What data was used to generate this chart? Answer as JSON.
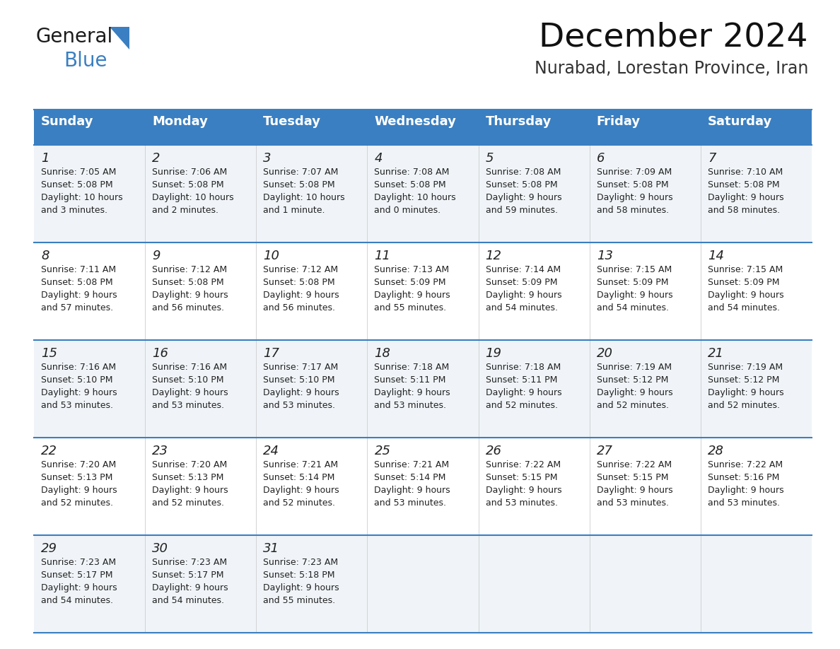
{
  "title": "December 2024",
  "subtitle": "Nurabad, Lorestan Province, Iran",
  "header_color": "#3a7fc1",
  "header_text_color": "#ffffff",
  "background_color": "#ffffff",
  "cell_bg_odd": "#f0f4f8",
  "cell_bg_even": "#ffffff",
  "border_color": "#3a7fc1",
  "text_color": "#222222",
  "day_names": [
    "Sunday",
    "Monday",
    "Tuesday",
    "Wednesday",
    "Thursday",
    "Friday",
    "Saturday"
  ],
  "weeks": [
    [
      {
        "day": 1,
        "sunrise": "7:05 AM",
        "sunset": "5:08 PM",
        "daylight_line1": "10 hours",
        "daylight_line2": "and 3 minutes."
      },
      {
        "day": 2,
        "sunrise": "7:06 AM",
        "sunset": "5:08 PM",
        "daylight_line1": "10 hours",
        "daylight_line2": "and 2 minutes."
      },
      {
        "day": 3,
        "sunrise": "7:07 AM",
        "sunset": "5:08 PM",
        "daylight_line1": "10 hours",
        "daylight_line2": "and 1 minute."
      },
      {
        "day": 4,
        "sunrise": "7:08 AM",
        "sunset": "5:08 PM",
        "daylight_line1": "10 hours",
        "daylight_line2": "and 0 minutes."
      },
      {
        "day": 5,
        "sunrise": "7:08 AM",
        "sunset": "5:08 PM",
        "daylight_line1": "9 hours",
        "daylight_line2": "and 59 minutes."
      },
      {
        "day": 6,
        "sunrise": "7:09 AM",
        "sunset": "5:08 PM",
        "daylight_line1": "9 hours",
        "daylight_line2": "and 58 minutes."
      },
      {
        "day": 7,
        "sunrise": "7:10 AM",
        "sunset": "5:08 PM",
        "daylight_line1": "9 hours",
        "daylight_line2": "and 58 minutes."
      }
    ],
    [
      {
        "day": 8,
        "sunrise": "7:11 AM",
        "sunset": "5:08 PM",
        "daylight_line1": "9 hours",
        "daylight_line2": "and 57 minutes."
      },
      {
        "day": 9,
        "sunrise": "7:12 AM",
        "sunset": "5:08 PM",
        "daylight_line1": "9 hours",
        "daylight_line2": "and 56 minutes."
      },
      {
        "day": 10,
        "sunrise": "7:12 AM",
        "sunset": "5:08 PM",
        "daylight_line1": "9 hours",
        "daylight_line2": "and 56 minutes."
      },
      {
        "day": 11,
        "sunrise": "7:13 AM",
        "sunset": "5:09 PM",
        "daylight_line1": "9 hours",
        "daylight_line2": "and 55 minutes."
      },
      {
        "day": 12,
        "sunrise": "7:14 AM",
        "sunset": "5:09 PM",
        "daylight_line1": "9 hours",
        "daylight_line2": "and 54 minutes."
      },
      {
        "day": 13,
        "sunrise": "7:15 AM",
        "sunset": "5:09 PM",
        "daylight_line1": "9 hours",
        "daylight_line2": "and 54 minutes."
      },
      {
        "day": 14,
        "sunrise": "7:15 AM",
        "sunset": "5:09 PM",
        "daylight_line1": "9 hours",
        "daylight_line2": "and 54 minutes."
      }
    ],
    [
      {
        "day": 15,
        "sunrise": "7:16 AM",
        "sunset": "5:10 PM",
        "daylight_line1": "9 hours",
        "daylight_line2": "and 53 minutes."
      },
      {
        "day": 16,
        "sunrise": "7:16 AM",
        "sunset": "5:10 PM",
        "daylight_line1": "9 hours",
        "daylight_line2": "and 53 minutes."
      },
      {
        "day": 17,
        "sunrise": "7:17 AM",
        "sunset": "5:10 PM",
        "daylight_line1": "9 hours",
        "daylight_line2": "and 53 minutes."
      },
      {
        "day": 18,
        "sunrise": "7:18 AM",
        "sunset": "5:11 PM",
        "daylight_line1": "9 hours",
        "daylight_line2": "and 53 minutes."
      },
      {
        "day": 19,
        "sunrise": "7:18 AM",
        "sunset": "5:11 PM",
        "daylight_line1": "9 hours",
        "daylight_line2": "and 52 minutes."
      },
      {
        "day": 20,
        "sunrise": "7:19 AM",
        "sunset": "5:12 PM",
        "daylight_line1": "9 hours",
        "daylight_line2": "and 52 minutes."
      },
      {
        "day": 21,
        "sunrise": "7:19 AM",
        "sunset": "5:12 PM",
        "daylight_line1": "9 hours",
        "daylight_line2": "and 52 minutes."
      }
    ],
    [
      {
        "day": 22,
        "sunrise": "7:20 AM",
        "sunset": "5:13 PM",
        "daylight_line1": "9 hours",
        "daylight_line2": "and 52 minutes."
      },
      {
        "day": 23,
        "sunrise": "7:20 AM",
        "sunset": "5:13 PM",
        "daylight_line1": "9 hours",
        "daylight_line2": "and 52 minutes."
      },
      {
        "day": 24,
        "sunrise": "7:21 AM",
        "sunset": "5:14 PM",
        "daylight_line1": "9 hours",
        "daylight_line2": "and 52 minutes."
      },
      {
        "day": 25,
        "sunrise": "7:21 AM",
        "sunset": "5:14 PM",
        "daylight_line1": "9 hours",
        "daylight_line2": "and 53 minutes."
      },
      {
        "day": 26,
        "sunrise": "7:22 AM",
        "sunset": "5:15 PM",
        "daylight_line1": "9 hours",
        "daylight_line2": "and 53 minutes."
      },
      {
        "day": 27,
        "sunrise": "7:22 AM",
        "sunset": "5:15 PM",
        "daylight_line1": "9 hours",
        "daylight_line2": "and 53 minutes."
      },
      {
        "day": 28,
        "sunrise": "7:22 AM",
        "sunset": "5:16 PM",
        "daylight_line1": "9 hours",
        "daylight_line2": "and 53 minutes."
      }
    ],
    [
      {
        "day": 29,
        "sunrise": "7:23 AM",
        "sunset": "5:17 PM",
        "daylight_line1": "9 hours",
        "daylight_line2": "and 54 minutes."
      },
      {
        "day": 30,
        "sunrise": "7:23 AM",
        "sunset": "5:17 PM",
        "daylight_line1": "9 hours",
        "daylight_line2": "and 54 minutes."
      },
      {
        "day": 31,
        "sunrise": "7:23 AM",
        "sunset": "5:18 PM",
        "daylight_line1": "9 hours",
        "daylight_line2": "and 55 minutes."
      },
      null,
      null,
      null,
      null
    ]
  ],
  "logo_general_color": "#1a1a1a",
  "logo_blue_color": "#3a7fc1",
  "logo_triangle_color": "#3a7fc1"
}
